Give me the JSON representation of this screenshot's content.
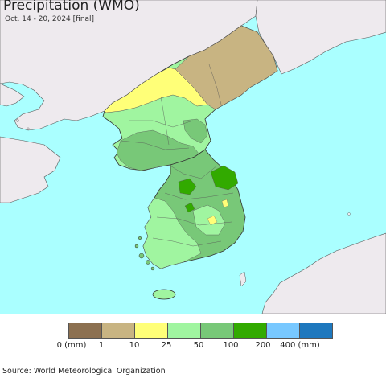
{
  "title": "Precipitation (WMO)",
  "subtitle": "Oct. 14 - 20, 2024 [final]",
  "source": "Source: World Meteorological Organization",
  "legend": {
    "ticks": [
      "0 (mm)",
      "1",
      "10",
      "25",
      "50",
      "100",
      "200",
      "400 (mm)"
    ],
    "colors": [
      "#8c7050",
      "#c8b482",
      "#ffff78",
      "#a0f5a0",
      "#78c878",
      "#32aa00",
      "#78c8ff",
      "#1e78be"
    ]
  },
  "map_colors": {
    "sea": "#aaffff",
    "land_outside": "#eeeaee",
    "border": "#333333"
  }
}
